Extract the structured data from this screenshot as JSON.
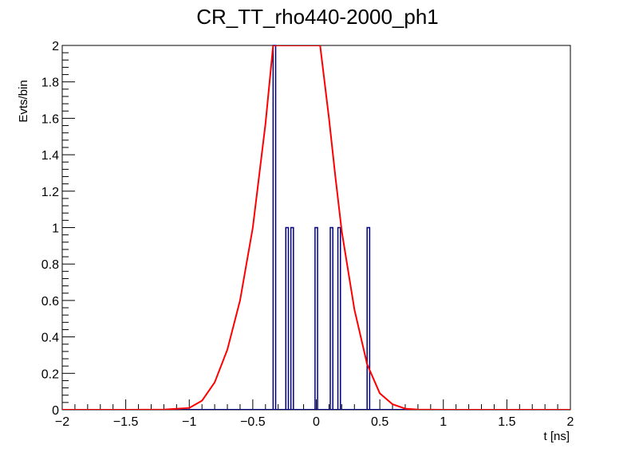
{
  "chart_data": {
    "type": "bar",
    "title": "CR_TT_rho440-2000_ph1",
    "xlabel": "t [ns]",
    "ylabel": "Evts/bin",
    "xlim": [
      -2,
      2
    ],
    "ylim": [
      0,
      2
    ],
    "xticks": [
      "−2",
      "−1.5",
      "−1",
      "−0.5",
      "0",
      "0.5",
      "1",
      "1.5",
      "2"
    ],
    "yticks": [
      "0",
      "0.2",
      "0.4",
      "0.6",
      "0.8",
      "1",
      "1.2",
      "1.4",
      "1.6",
      "1.8",
      "2"
    ],
    "grid": false,
    "series": [
      {
        "kind": "histogram",
        "color": "#000080",
        "bin_width": 0.02,
        "bins": [
          {
            "x": -0.34,
            "y": 2
          },
          {
            "x": -0.24,
            "y": 1
          },
          {
            "x": -0.2,
            "y": 1
          },
          {
            "x": -0.01,
            "y": 1
          },
          {
            "x": 0.11,
            "y": 1
          },
          {
            "x": 0.17,
            "y": 1
          },
          {
            "x": 0.4,
            "y": 1
          }
        ]
      },
      {
        "kind": "fit",
        "color": "#ff0000",
        "x": [
          -2,
          -1.5,
          -1.2,
          -1.0,
          -0.9,
          -0.8,
          -0.7,
          -0.6,
          -0.5,
          -0.4,
          -0.34,
          0.03,
          0.1,
          0.15,
          0.2,
          0.3,
          0.4,
          0.5,
          0.6,
          0.7,
          0.8,
          1.0,
          1.5,
          2.0
        ],
        "y": [
          0,
          0,
          0.001,
          0.01,
          0.05,
          0.15,
          0.33,
          0.6,
          1.0,
          1.57,
          2.0,
          2.0,
          1.6,
          1.28,
          0.98,
          0.55,
          0.25,
          0.09,
          0.03,
          0.006,
          0.001,
          0,
          0,
          0
        ]
      }
    ]
  }
}
